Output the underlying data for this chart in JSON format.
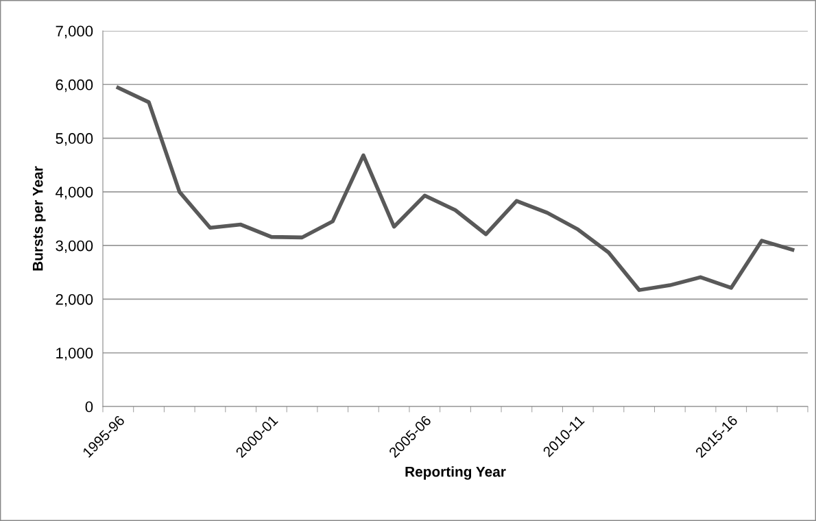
{
  "chart_data": {
    "type": "line",
    "xlabel": "Reporting Year",
    "ylabel": "Bursts per Year",
    "categories": [
      "1995-96",
      null,
      null,
      null,
      null,
      "2000-01",
      null,
      null,
      null,
      null,
      "2005-06",
      null,
      null,
      null,
      null,
      "2010-11",
      null,
      null,
      null,
      null,
      "2015-16",
      null,
      null
    ],
    "series": [
      {
        "color": "#595959",
        "values": [
          5940,
          5670,
          4000,
          3330,
          3390,
          3160,
          3150,
          3450,
          4680,
          3350,
          3930,
          3660,
          3210,
          3830,
          3610,
          3300,
          2870,
          2170,
          2260,
          2410,
          2210,
          3090,
          2920
        ]
      }
    ],
    "ylim": [
      0,
      7000
    ],
    "yticks": [
      {
        "value": 0,
        "label": "0"
      },
      {
        "value": 1000,
        "label": "1,000"
      },
      {
        "value": 2000,
        "label": "2,000"
      },
      {
        "value": 3000,
        "label": "3,000"
      },
      {
        "value": 4000,
        "label": "4,000"
      },
      {
        "value": 5000,
        "label": "5,000"
      },
      {
        "value": 6000,
        "label": "6,000"
      },
      {
        "value": 7000,
        "label": "7,000"
      }
    ],
    "grid": "y",
    "legend": false,
    "marker": "none",
    "line_style": "solid"
  }
}
